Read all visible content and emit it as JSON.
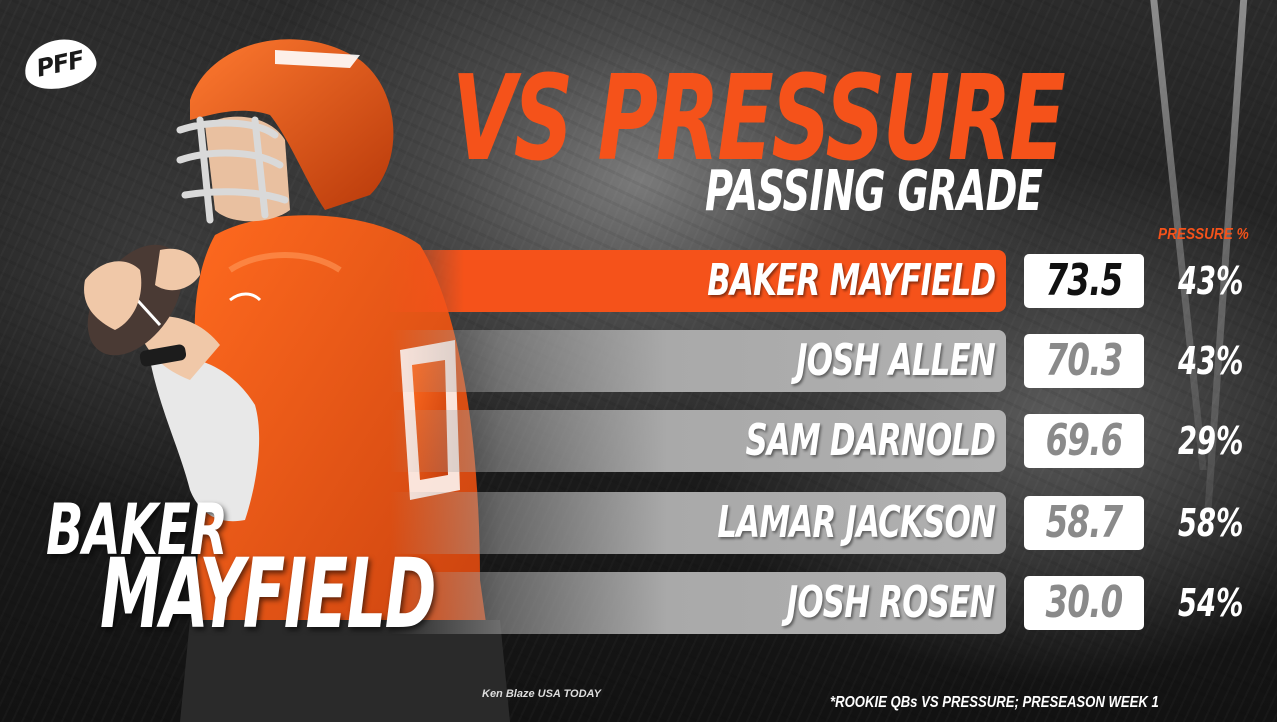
{
  "logo": {
    "text": "PFF"
  },
  "header": {
    "title": "VS PRESSURE",
    "subtitle": "PASSING GRADE",
    "pressure_column_label": "PRESSURE %"
  },
  "featured_player": {
    "first_name": "BAKER",
    "last_name": "MAYFIELD"
  },
  "colors": {
    "accent": "#f5521a",
    "bar": "#a9a9a9",
    "grade_box": "#ffffff",
    "grade_text": "#8a8a8a",
    "grade_text_highlight": "#111111"
  },
  "chart_data": {
    "type": "table",
    "title": "VS PRESSURE",
    "subtitle": "PASSING GRADE",
    "columns": [
      "PRESSURE %"
    ],
    "rows": [
      {
        "player": "BAKER MAYFIELD",
        "grade": "73.5",
        "pressure_pct": "43%",
        "highlight": true
      },
      {
        "player": "JOSH ALLEN",
        "grade": "70.3",
        "pressure_pct": "43%",
        "highlight": false
      },
      {
        "player": "SAM DARNOLD",
        "grade": "69.6",
        "pressure_pct": "29%",
        "highlight": false
      },
      {
        "player": "LAMAR JACKSON",
        "grade": "58.7",
        "pressure_pct": "58%",
        "highlight": false
      },
      {
        "player": "JOSH ROSEN",
        "grade": "30.0",
        "pressure_pct": "54%",
        "highlight": false
      }
    ],
    "values": [
      73.5,
      70.3,
      69.6,
      58.7,
      30.0
    ],
    "categories": [
      "BAKER MAYFIELD",
      "JOSH ALLEN",
      "SAM DARNOLD",
      "LAMAR JACKSON",
      "JOSH ROSEN"
    ]
  },
  "footer": {
    "photo_credit": "Ken Blaze USA TODAY",
    "footnote": "*ROOKIE QBs VS PRESSURE; PRESEASON WEEK 1"
  }
}
